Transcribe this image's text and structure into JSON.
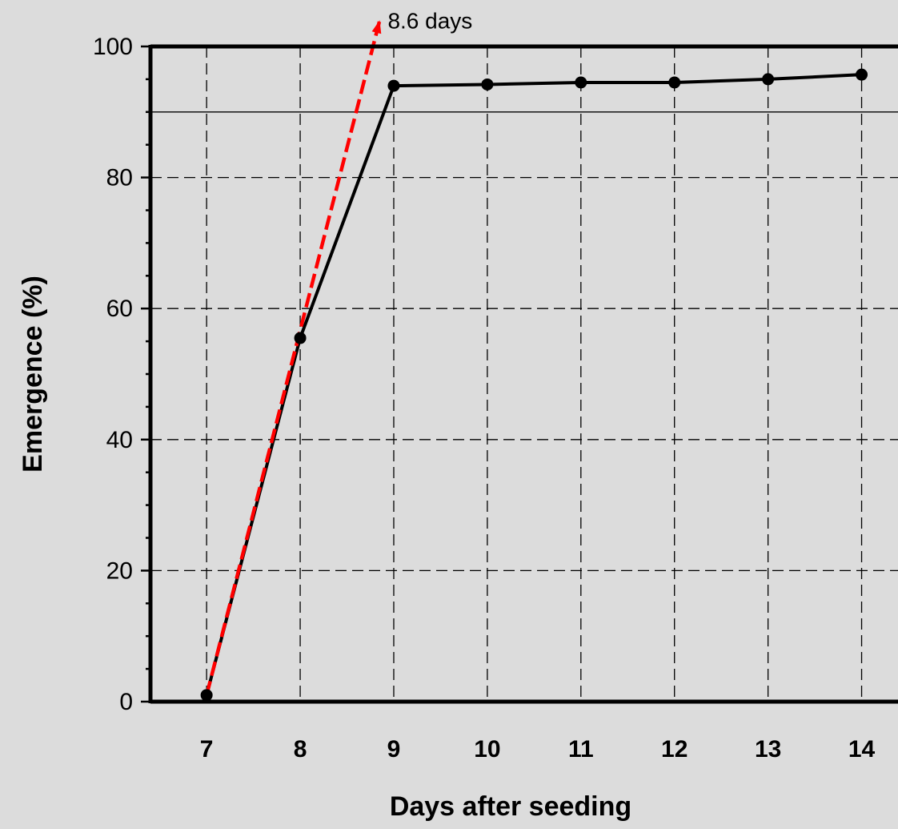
{
  "chart_data": {
    "type": "line",
    "title": "",
    "xlabel": "Days after seeding",
    "ylabel": "Emergence (%)",
    "x": [
      7,
      8,
      9,
      10,
      11,
      12,
      13,
      14
    ],
    "xlim": [
      6.4,
      14.5
    ],
    "ylim": [
      0,
      100
    ],
    "x_ticks": [
      "7",
      "8",
      "9",
      "10",
      "11",
      "12",
      "13",
      "14"
    ],
    "y_ticks": [
      "0",
      "20",
      "40",
      "60",
      "80",
      "100"
    ],
    "y_tick_values": [
      0,
      20,
      40,
      60,
      80,
      100
    ],
    "grid": true,
    "series": [
      {
        "values": [
          1,
          55.5,
          94,
          94.2,
          94.5,
          94.5,
          95,
          95.7
        ],
        "color": "#000000"
      }
    ],
    "reference_line": {
      "y": 90,
      "color": "#000000"
    },
    "annotation": {
      "text": "8.6 days",
      "from": [
        7,
        1
      ],
      "to": [
        8.85,
        104
      ],
      "color": "#ff0000"
    }
  }
}
